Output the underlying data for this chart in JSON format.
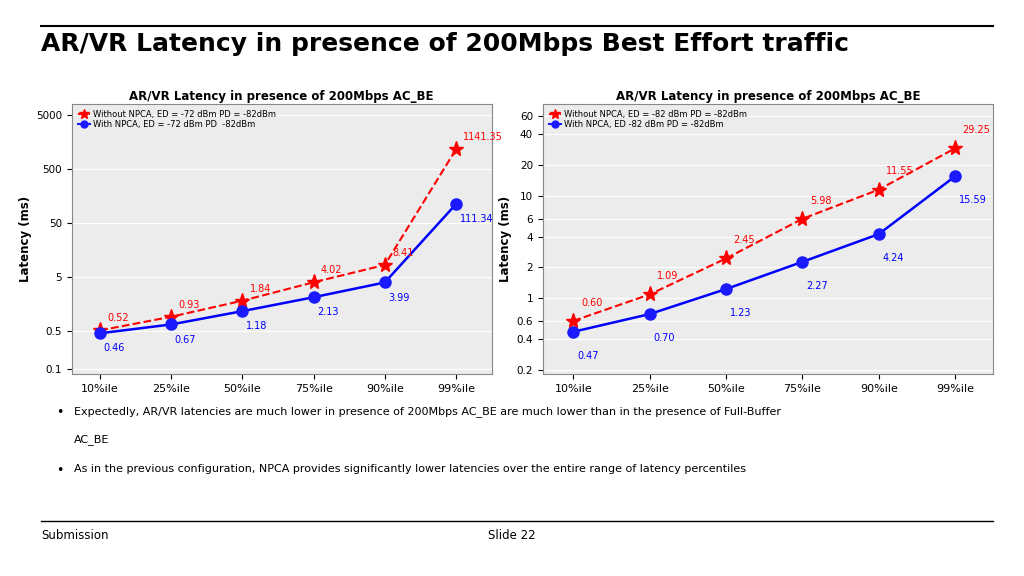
{
  "title": "AR/VR Latency in presence of 200Mbps Best Effort traffic",
  "slide_title_fontsize": 18,
  "background_color": "#ffffff",
  "chart1": {
    "title": "AR/VR Latency in presence of 200Mbps AC_BE",
    "legend1": "Without NPCA, ED = -72 dBm PD = -82dBm",
    "legend2": "With NPCA, ED = -72 dBm PD  -82dBm",
    "categories": [
      "10%ile",
      "25%ile",
      "50%ile",
      "75%ile",
      "90%ile",
      "99%ile"
    ],
    "red_values": [
      0.52,
      0.93,
      1.84,
      4.02,
      8.41,
      1141.35
    ],
    "blue_values": [
      0.46,
      0.67,
      1.18,
      2.13,
      3.99,
      111.34
    ],
    "red_labels": [
      "0.52",
      "0.93",
      "1.84",
      "4.02",
      "8.41",
      "1141.35"
    ],
    "blue_labels": [
      "0.46",
      "0.67",
      "1.18",
      "2.13",
      "3.99",
      "111.34"
    ],
    "yticks": [
      0.1,
      0.5,
      5,
      50,
      500,
      5000
    ],
    "ytick_labels": [
      "0.1",
      "0.5",
      "5",
      "50",
      "500",
      "5000"
    ],
    "ylim_min": 0.08,
    "ylim_max": 8000
  },
  "chart2": {
    "title": "AR/VR Latency in presence of 200Mbps AC_BE",
    "legend1": "Without NPCA, ED = -82 dBm PD = -82dBm",
    "legend2": "With NPCA, ED -82 dBm PD = -82dBm",
    "categories": [
      "10%ile",
      "25%ile",
      "50%ile",
      "75%ile",
      "90%ile",
      "99%ile"
    ],
    "red_values": [
      0.6,
      1.09,
      2.45,
      5.98,
      11.55,
      29.25
    ],
    "blue_values": [
      0.47,
      0.7,
      1.23,
      2.27,
      4.24,
      15.59
    ],
    "red_labels": [
      "0.60",
      "1.09",
      "2.45",
      "5.98",
      "11.55",
      "29.25"
    ],
    "blue_labels": [
      "0.47",
      "0.70",
      "1.23",
      "2.27",
      "4.24",
      "15.59"
    ],
    "yticks": [
      0.2,
      0.4,
      0.6,
      1,
      2,
      4,
      6,
      10,
      20,
      40,
      60
    ],
    "ytick_labels": [
      "0.2",
      "0.4",
      "0.6",
      "1",
      "2",
      "4",
      "6",
      "10",
      "20",
      "40",
      "60"
    ],
    "ylim_min": 0.18,
    "ylim_max": 80
  },
  "bullet1_line1": "Expectedly, AR/VR latencies are much lower in presence of 200Mbps AC_BE are much lower than in the presence of Full-Buffer",
  "bullet1_line2": "AC_BE",
  "bullet2": "As in the previous configuration, NPCA provides significantly lower latencies over the entire range of latency percentiles",
  "footer_left": "Submission",
  "footer_center": "Slide 22"
}
